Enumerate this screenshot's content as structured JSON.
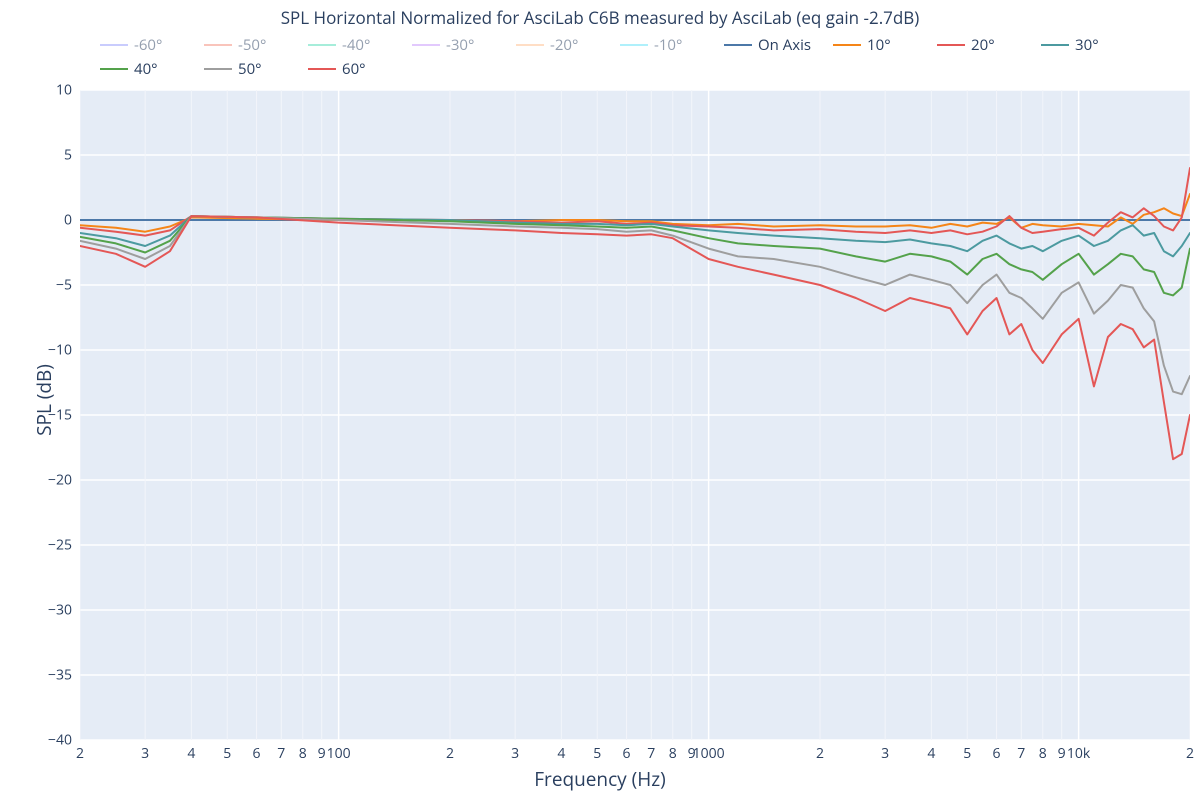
{
  "title": "SPL Horizontal Normalized for AsciLab C6B measured by AsciLab (eq gain -2.7dB)",
  "xlabel": "Frequency (Hz)",
  "ylabel": "SPL (dB)",
  "chart_type": "line",
  "background_color": "#ffffff",
  "plot_bgcolor": "#e5ecf6",
  "grid_color_major": "#ffffff",
  "grid_color_minor": "#f2f5fa",
  "text_color": "#2a3f5f",
  "x_axis": {
    "scale": "log",
    "min": 20,
    "max": 20000,
    "major_ticks": [
      100,
      1000,
      10000
    ],
    "major_labels": [
      "100",
      "1000",
      "10k"
    ],
    "minor_ticks": [
      20,
      30,
      40,
      50,
      60,
      70,
      80,
      90,
      200,
      300,
      400,
      500,
      600,
      700,
      800,
      900,
      2000,
      3000,
      4000,
      5000,
      6000,
      7000,
      8000,
      9000,
      20000
    ],
    "minor_labels": [
      "2",
      "3",
      "4",
      "5",
      "6",
      "7",
      "8",
      "9",
      "2",
      "3",
      "4",
      "5",
      "6",
      "7",
      "8",
      "9",
      "2",
      "3",
      "4",
      "5",
      "6",
      "7",
      "8",
      "9",
      "2"
    ]
  },
  "y_axis": {
    "min": -40,
    "max": 10,
    "ticks": [
      -40,
      -35,
      -30,
      -25,
      -20,
      -15,
      -10,
      -5,
      0,
      5,
      10
    ],
    "labels": [
      "−40",
      "−35",
      "−30",
      "−25",
      "−20",
      "−15",
      "−10",
      "−5",
      "0",
      "5",
      "10"
    ]
  },
  "legend": [
    {
      "label": "-60°",
      "color": "#636efa"
    },
    {
      "label": "-50°",
      "color": "#ef553b"
    },
    {
      "label": "-40°",
      "color": "#00cc96"
    },
    {
      "label": "-30°",
      "color": "#ab63fa"
    },
    {
      "label": "-20°",
      "color": "#ffa15a"
    },
    {
      "label": "-10°",
      "color": "#19d3f3"
    },
    {
      "label": "On Axis",
      "color": "#4c78a8"
    },
    {
      "label": "10°",
      "color": "#f58518"
    },
    {
      "label": "20°",
      "color": "#e45756"
    },
    {
      "label": "30°",
      "color": "#4c9aa0"
    },
    {
      "label": "40°",
      "color": "#54a24b"
    },
    {
      "label": "50°",
      "color": "#9e9e9e"
    },
    {
      "label": "60°",
      "color": "#e45756"
    }
  ],
  "legend_faded_indices": [
    0,
    1,
    2,
    3,
    4,
    5
  ],
  "line_width": 2,
  "series": [
    {
      "name": "On Axis",
      "color": "#4c78a8",
      "x": [
        20,
        20000
      ],
      "y": [
        0,
        0
      ]
    },
    {
      "name": "10°",
      "color": "#f58518",
      "x": [
        20,
        25,
        30,
        35,
        40,
        60,
        100,
        200,
        300,
        400,
        500,
        600,
        700,
        800,
        1000,
        1200,
        1500,
        2000,
        2500,
        3000,
        3500,
        4000,
        4500,
        5000,
        5500,
        6000,
        6500,
        7000,
        7500,
        8000,
        9000,
        10000,
        11000,
        12000,
        13000,
        14000,
        15000,
        16000,
        17000,
        18000,
        19000,
        20000
      ],
      "y": [
        -0.4,
        -0.6,
        -0.9,
        -0.5,
        0.2,
        0.1,
        0.0,
        0.0,
        -0.1,
        0.0,
        0.0,
        -0.1,
        -0.1,
        -0.3,
        -0.4,
        -0.3,
        -0.5,
        -0.4,
        -0.5,
        -0.5,
        -0.4,
        -0.6,
        -0.3,
        -0.5,
        -0.2,
        -0.3,
        0.2,
        -0.6,
        -0.3,
        -0.4,
        -0.5,
        -0.3,
        -0.4,
        -0.5,
        0.2,
        -0.3,
        0.4,
        0.6,
        0.9,
        0.5,
        0.3,
        2.0
      ]
    },
    {
      "name": "20°",
      "color": "#e45756",
      "x": [
        20,
        25,
        30,
        35,
        40,
        60,
        100,
        200,
        300,
        400,
        500,
        600,
        700,
        800,
        1000,
        1200,
        1500,
        2000,
        2500,
        3000,
        3500,
        4000,
        4500,
        5000,
        5500,
        6000,
        6500,
        7000,
        7500,
        8000,
        9000,
        10000,
        11000,
        12000,
        13000,
        14000,
        15000,
        16000,
        17000,
        18000,
        19000,
        20000
      ],
      "y": [
        -0.6,
        -0.9,
        -1.2,
        -0.8,
        0.3,
        0.2,
        0.1,
        0.0,
        -0.1,
        -0.2,
        -0.1,
        -0.3,
        -0.2,
        -0.4,
        -0.5,
        -0.6,
        -0.8,
        -0.7,
        -0.9,
        -1.0,
        -0.8,
        -1.0,
        -0.8,
        -1.1,
        -0.9,
        -0.5,
        0.3,
        -0.6,
        -1.0,
        -0.9,
        -0.7,
        -0.6,
        -1.2,
        -0.2,
        0.6,
        0.2,
        0.9,
        0.3,
        -0.5,
        -0.8,
        0.2,
        4.0
      ]
    },
    {
      "name": "30°",
      "color": "#4c9aa0",
      "x": [
        20,
        25,
        30,
        35,
        40,
        60,
        100,
        200,
        300,
        400,
        500,
        600,
        700,
        800,
        1000,
        1200,
        1500,
        2000,
        2500,
        3000,
        3500,
        4000,
        4500,
        5000,
        5500,
        6000,
        6500,
        7000,
        7500,
        8000,
        9000,
        10000,
        11000,
        12000,
        13000,
        14000,
        15000,
        16000,
        17000,
        18000,
        19000,
        20000
      ],
      "y": [
        -1.0,
        -1.4,
        -2.0,
        -1.2,
        0.3,
        0.2,
        0.1,
        0.0,
        -0.2,
        -0.3,
        -0.3,
        -0.4,
        -0.3,
        -0.5,
        -0.8,
        -1.0,
        -1.2,
        -1.4,
        -1.6,
        -1.7,
        -1.5,
        -1.8,
        -2.0,
        -2.4,
        -1.6,
        -1.2,
        -1.8,
        -2.2,
        -2.0,
        -2.4,
        -1.6,
        -1.2,
        -2.0,
        -1.6,
        -0.8,
        -0.4,
        -1.2,
        -1.0,
        -2.4,
        -2.8,
        -2.0,
        -1.0
      ]
    },
    {
      "name": "40°",
      "color": "#54a24b",
      "x": [
        20,
        25,
        30,
        35,
        40,
        60,
        100,
        200,
        300,
        400,
        500,
        600,
        700,
        800,
        1000,
        1200,
        1500,
        2000,
        2500,
        3000,
        3500,
        4000,
        4500,
        5000,
        5500,
        6000,
        6500,
        7000,
        7500,
        8000,
        9000,
        10000,
        11000,
        12000,
        13000,
        14000,
        15000,
        16000,
        17000,
        18000,
        19000,
        20000
      ],
      "y": [
        -1.3,
        -1.8,
        -2.5,
        -1.6,
        0.3,
        0.2,
        0.1,
        -0.1,
        -0.3,
        -0.4,
        -0.5,
        -0.6,
        -0.5,
        -0.8,
        -1.4,
        -1.8,
        -2.0,
        -2.2,
        -2.8,
        -3.2,
        -2.6,
        -2.8,
        -3.2,
        -4.2,
        -3.0,
        -2.6,
        -3.4,
        -3.8,
        -4.0,
        -4.6,
        -3.4,
        -2.6,
        -4.2,
        -3.4,
        -2.6,
        -2.8,
        -3.8,
        -4.0,
        -5.6,
        -5.8,
        -5.2,
        -2.2
      ]
    },
    {
      "name": "50°",
      "color": "#9e9e9e",
      "x": [
        20,
        25,
        30,
        35,
        40,
        60,
        100,
        200,
        300,
        400,
        500,
        600,
        700,
        800,
        1000,
        1200,
        1500,
        2000,
        2500,
        3000,
        3500,
        4000,
        4500,
        5000,
        5500,
        6000,
        6500,
        7000,
        7500,
        8000,
        9000,
        10000,
        11000,
        12000,
        13000,
        14000,
        15000,
        16000,
        17000,
        18000,
        19000,
        20000
      ],
      "y": [
        -1.6,
        -2.2,
        -3.0,
        -2.0,
        0.3,
        0.2,
        0.0,
        -0.3,
        -0.5,
        -0.6,
        -0.7,
        -0.9,
        -0.8,
        -1.2,
        -2.2,
        -2.8,
        -3.0,
        -3.6,
        -4.4,
        -5.0,
        -4.2,
        -4.6,
        -5.0,
        -6.4,
        -5.0,
        -4.2,
        -5.6,
        -6.0,
        -6.8,
        -7.6,
        -5.6,
        -4.8,
        -7.2,
        -6.2,
        -5.0,
        -5.2,
        -6.8,
        -7.8,
        -11.2,
        -13.2,
        -13.4,
        -12.0
      ]
    },
    {
      "name": "60°",
      "color": "#e45756",
      "x": [
        20,
        25,
        30,
        35,
        40,
        60,
        100,
        200,
        300,
        400,
        500,
        600,
        700,
        800,
        1000,
        1200,
        1500,
        2000,
        2500,
        3000,
        3500,
        4000,
        4500,
        5000,
        5500,
        6000,
        6500,
        7000,
        7500,
        8000,
        9000,
        10000,
        11000,
        12000,
        13000,
        14000,
        15000,
        16000,
        17000,
        18000,
        19000,
        20000
      ],
      "y": [
        -2.0,
        -2.6,
        -3.6,
        -2.4,
        0.3,
        0.2,
        -0.2,
        -0.6,
        -0.8,
        -1.0,
        -1.1,
        -1.2,
        -1.1,
        -1.4,
        -3.0,
        -3.6,
        -4.2,
        -5.0,
        -6.0,
        -7.0,
        -6.0,
        -6.4,
        -6.8,
        -8.8,
        -7.0,
        -6.0,
        -8.8,
        -8.0,
        -10.0,
        -11.0,
        -8.8,
        -7.6,
        -12.8,
        -9.0,
        -8.0,
        -8.4,
        -9.8,
        -9.2,
        -14.0,
        -18.4,
        -18.0,
        -15.0
      ]
    }
  ]
}
